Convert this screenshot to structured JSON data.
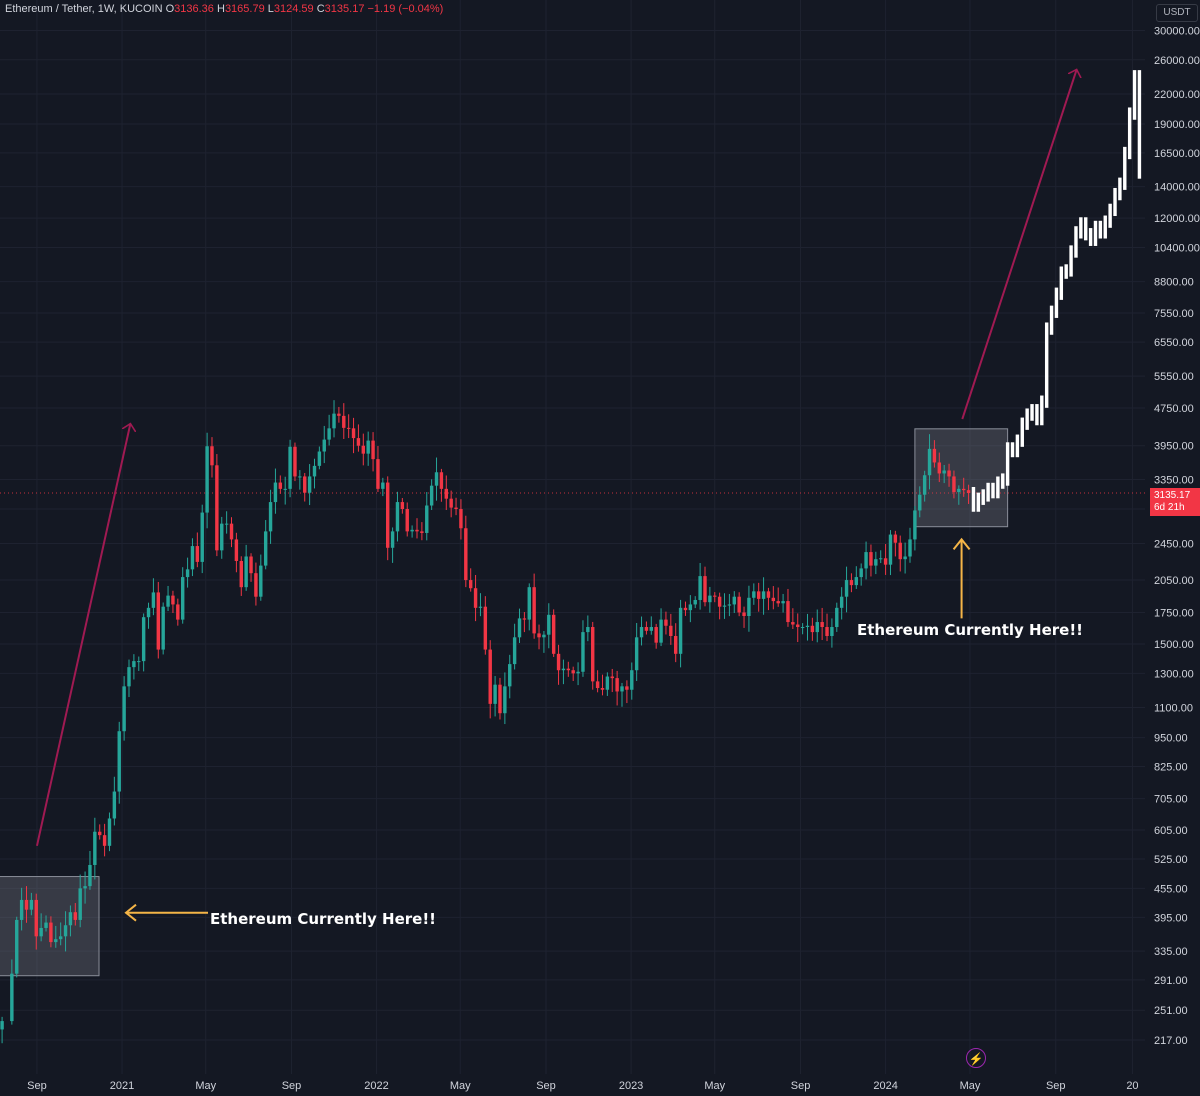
{
  "header": {
    "symbol": "Ethereum / Tether, 1W, KUCOIN",
    "o_label": "O",
    "o_value": "3136.36",
    "h_label": "H",
    "h_value": "3165.79",
    "l_label": "L",
    "l_value": "3124.59",
    "c_label": "C",
    "c_value": "3135.17",
    "change": "−1.19 (−0.04%)"
  },
  "currency_badge": "USDT",
  "last_price": {
    "value": "3135.17",
    "countdown": "6d 21h"
  },
  "annotations": {
    "left_label": "Ethereum Currently Here!!",
    "right_label": "Ethereum Currently Here!!"
  },
  "colors": {
    "background": "#141823",
    "up": "#26a69a",
    "down": "#f23645",
    "projection": "#ffffff",
    "trend_arrow": "#a01a52",
    "pointer_arrow": "#f5b547",
    "highlight_box": "#545866"
  },
  "icons": {
    "replay": "lightning-icon"
  },
  "chart_data": {
    "type": "candlestick",
    "symbol": "Ethereum / Tether",
    "timeframe": "1W",
    "exchange": "KUCOIN",
    "y_scale": "log",
    "ylim": [
      190,
      31000
    ],
    "y_ticks": [
      30000,
      26000,
      22000,
      19000,
      16500,
      14000,
      12000,
      10400,
      8800,
      7550,
      6550,
      5550,
      4750,
      3950,
      3350,
      2900,
      2450,
      2050,
      1750,
      1500,
      1300,
      1100,
      950,
      825,
      705,
      605,
      525,
      455,
      395,
      335,
      291,
      251,
      217
    ],
    "y_tick_labels": [
      "30000.00",
      "26000.00",
      "22000.00",
      "19000.00",
      "16500.00",
      "14000.00",
      "12000.00",
      "10400.00",
      "8800.00",
      "7550.00",
      "6550.00",
      "5550.00",
      "4750.00",
      "3950.00",
      "3350.00",
      "2900.00",
      "2450.00",
      "2050.00",
      "1750.00",
      "1500.00",
      "1300.00",
      "1100.00",
      "950.00",
      "825.00",
      "705.00",
      "605.00",
      "525.00",
      "455.00",
      "395.00",
      "335.00",
      "291.00",
      "251.00",
      "217.00"
    ],
    "x_ticks": [
      {
        "label": "Sep",
        "date": "2020-09-01"
      },
      {
        "label": "2021",
        "date": "2021-01-01"
      },
      {
        "label": "May",
        "date": "2021-05-01"
      },
      {
        "label": "Sep",
        "date": "2021-09-01"
      },
      {
        "label": "2022",
        "date": "2022-01-01"
      },
      {
        "label": "May",
        "date": "2022-05-01"
      },
      {
        "label": "Sep",
        "date": "2022-09-01"
      },
      {
        "label": "2023",
        "date": "2023-01-01"
      },
      {
        "label": "May",
        "date": "2023-05-01"
      },
      {
        "label": "Sep",
        "date": "2023-09-01"
      },
      {
        "label": "2024",
        "date": "2024-01-01"
      },
      {
        "label": "May",
        "date": "2024-05-01"
      },
      {
        "label": "Sep",
        "date": "2024-09-01"
      },
      {
        "label": "20",
        "date": "2024-12-20"
      }
    ],
    "x_range": [
      "2020-07-10",
      "2025-01-07"
    ],
    "last_price": 3135.17,
    "weekly_path": [
      [
        "2020-07-13",
        238
      ],
      [
        "2020-07-27",
        300
      ],
      [
        "2020-08-03",
        390
      ],
      [
        "2020-08-10",
        430
      ],
      [
        "2020-08-17",
        410
      ],
      [
        "2020-08-24",
        430
      ],
      [
        "2020-08-31",
        360
      ],
      [
        "2020-09-07",
        375
      ],
      [
        "2020-09-14",
        385
      ],
      [
        "2020-09-21",
        350
      ],
      [
        "2020-09-28",
        355
      ],
      [
        "2020-10-05",
        360
      ],
      [
        "2020-10-12",
        380
      ],
      [
        "2020-10-19",
        405
      ],
      [
        "2020-10-26",
        390
      ],
      [
        "2020-11-02",
        455
      ],
      [
        "2020-11-09",
        460
      ],
      [
        "2020-11-16",
        510
      ],
      [
        "2020-11-23",
        600
      ],
      [
        "2020-11-30",
        590
      ],
      [
        "2020-12-07",
        560
      ],
      [
        "2020-12-14",
        640
      ],
      [
        "2020-12-21",
        730
      ],
      [
        "2020-12-28",
        980
      ],
      [
        "2021-01-04",
        1220
      ],
      [
        "2021-01-11",
        1340
      ],
      [
        "2021-01-18",
        1380
      ],
      [
        "2021-01-25",
        1380
      ],
      [
        "2021-02-01",
        1710
      ],
      [
        "2021-02-08",
        1790
      ],
      [
        "2021-02-15",
        1930
      ],
      [
        "2021-02-22",
        1460
      ],
      [
        "2021-03-01",
        1800
      ],
      [
        "2021-03-08",
        1900
      ],
      [
        "2021-03-15",
        1820
      ],
      [
        "2021-03-22",
        1690
      ],
      [
        "2021-03-29",
        2080
      ],
      [
        "2021-04-05",
        2160
      ],
      [
        "2021-04-12",
        2420
      ],
      [
        "2021-04-19",
        2240
      ],
      [
        "2021-04-26",
        2850
      ],
      [
        "2021-05-03",
        3940
      ],
      [
        "2021-05-10",
        3590
      ],
      [
        "2021-05-17",
        2370
      ],
      [
        "2021-05-24",
        2700
      ],
      [
        "2021-05-31",
        2700
      ],
      [
        "2021-06-07",
        2500
      ],
      [
        "2021-06-14",
        2250
      ],
      [
        "2021-06-21",
        1980
      ],
      [
        "2021-06-28",
        2300
      ],
      [
        "2021-07-05",
        2120
      ],
      [
        "2021-07-12",
        1890
      ],
      [
        "2021-07-19",
        2200
      ],
      [
        "2021-07-26",
        2600
      ],
      [
        "2021-08-02",
        3000
      ],
      [
        "2021-08-09",
        3300
      ],
      [
        "2021-08-16",
        3200
      ],
      [
        "2021-08-23",
        3200
      ],
      [
        "2021-08-30",
        3930
      ],
      [
        "2021-09-06",
        3400
      ],
      [
        "2021-09-13",
        3400
      ],
      [
        "2021-09-20",
        3140
      ],
      [
        "2021-09-27",
        3400
      ],
      [
        "2021-10-04",
        3580
      ],
      [
        "2021-10-11",
        3840
      ],
      [
        "2021-10-18",
        4070
      ],
      [
        "2021-10-25",
        4300
      ],
      [
        "2021-11-01",
        4620
      ],
      [
        "2021-11-08",
        4570
      ],
      [
        "2021-11-15",
        4310
      ],
      [
        "2021-11-22",
        4300
      ],
      [
        "2021-11-29",
        4100
      ],
      [
        "2021-12-06",
        3950
      ],
      [
        "2021-12-13",
        3800
      ],
      [
        "2021-12-20",
        4050
      ],
      [
        "2021-12-27",
        3700
      ],
      [
        "2022-01-03",
        3200
      ],
      [
        "2022-01-10",
        3300
      ],
      [
        "2022-01-17",
        2400
      ],
      [
        "2022-01-24",
        2600
      ],
      [
        "2022-01-31",
        3000
      ],
      [
        "2022-02-07",
        2900
      ],
      [
        "2022-02-14",
        2600
      ],
      [
        "2022-02-21",
        2620
      ],
      [
        "2022-02-28",
        2600
      ],
      [
        "2022-03-07",
        2580
      ],
      [
        "2022-03-14",
        2950
      ],
      [
        "2022-03-21",
        3250
      ],
      [
        "2022-03-28",
        3470
      ],
      [
        "2022-04-04",
        3200
      ],
      [
        "2022-04-11",
        3050
      ],
      [
        "2022-04-18",
        2920
      ],
      [
        "2022-04-25",
        2900
      ],
      [
        "2022-05-02",
        2640
      ],
      [
        "2022-05-09",
        2050
      ],
      [
        "2022-05-16",
        1970
      ],
      [
        "2022-05-23",
        1790
      ],
      [
        "2022-05-30",
        1800
      ],
      [
        "2022-06-06",
        1460
      ],
      [
        "2022-06-13",
        1120
      ],
      [
        "2022-06-20",
        1230
      ],
      [
        "2022-06-27",
        1070
      ],
      [
        "2022-07-04",
        1220
      ],
      [
        "2022-07-11",
        1360
      ],
      [
        "2022-07-18",
        1550
      ],
      [
        "2022-07-25",
        1700
      ],
      [
        "2022-08-01",
        1690
      ],
      [
        "2022-08-08",
        1980
      ],
      [
        "2022-08-15",
        1580
      ],
      [
        "2022-08-22",
        1550
      ],
      [
        "2022-08-29",
        1570
      ],
      [
        "2022-09-05",
        1730
      ],
      [
        "2022-09-12",
        1430
      ],
      [
        "2022-09-19",
        1320
      ],
      [
        "2022-09-26",
        1330
      ],
      [
        "2022-10-03",
        1320
      ],
      [
        "2022-10-10",
        1300
      ],
      [
        "2022-10-17",
        1310
      ],
      [
        "2022-10-24",
        1590
      ],
      [
        "2022-10-31",
        1630
      ],
      [
        "2022-11-07",
        1250
      ],
      [
        "2022-11-14",
        1210
      ],
      [
        "2022-11-21",
        1200
      ],
      [
        "2022-11-28",
        1280
      ],
      [
        "2022-12-05",
        1270
      ],
      [
        "2022-12-12",
        1190
      ],
      [
        "2022-12-19",
        1220
      ],
      [
        "2022-12-26",
        1200
      ],
      [
        "2023-01-02",
        1320
      ],
      [
        "2023-01-09",
        1550
      ],
      [
        "2023-01-16",
        1630
      ],
      [
        "2023-01-23",
        1600
      ],
      [
        "2023-01-30",
        1630
      ],
      [
        "2023-02-06",
        1510
      ],
      [
        "2023-02-13",
        1690
      ],
      [
        "2023-02-20",
        1640
      ],
      [
        "2023-02-27",
        1560
      ],
      [
        "2023-03-06",
        1430
      ],
      [
        "2023-03-13",
        1790
      ],
      [
        "2023-03-20",
        1770
      ],
      [
        "2023-03-27",
        1820
      ],
      [
        "2023-04-03",
        1860
      ],
      [
        "2023-04-10",
        2090
      ],
      [
        "2023-04-17",
        1840
      ],
      [
        "2023-04-24",
        1900
      ],
      [
        "2023-05-01",
        1890
      ],
      [
        "2023-05-08",
        1800
      ],
      [
        "2023-05-15",
        1810
      ],
      [
        "2023-05-22",
        1820
      ],
      [
        "2023-05-29",
        1890
      ],
      [
        "2023-06-05",
        1750
      ],
      [
        "2023-06-12",
        1720
      ],
      [
        "2023-06-19",
        1880
      ],
      [
        "2023-06-26",
        1940
      ],
      [
        "2023-07-03",
        1870
      ],
      [
        "2023-07-10",
        1940
      ],
      [
        "2023-07-17",
        1880
      ],
      [
        "2023-07-24",
        1850
      ],
      [
        "2023-07-31",
        1830
      ],
      [
        "2023-08-07",
        1850
      ],
      [
        "2023-08-14",
        1670
      ],
      [
        "2023-08-21",
        1650
      ],
      [
        "2023-08-28",
        1630
      ],
      [
        "2023-09-04",
        1630
      ],
      [
        "2023-09-11",
        1640
      ],
      [
        "2023-09-18",
        1590
      ],
      [
        "2023-09-25",
        1670
      ],
      [
        "2023-10-02",
        1630
      ],
      [
        "2023-10-09",
        1560
      ],
      [
        "2023-10-16",
        1630
      ],
      [
        "2023-10-23",
        1790
      ],
      [
        "2023-10-30",
        1890
      ],
      [
        "2023-11-06",
        2050
      ],
      [
        "2023-11-13",
        2000
      ],
      [
        "2023-11-20",
        2080
      ],
      [
        "2023-11-27",
        2170
      ],
      [
        "2023-12-04",
        2350
      ],
      [
        "2023-12-11",
        2200
      ],
      [
        "2023-12-18",
        2270
      ],
      [
        "2023-12-25",
        2280
      ],
      [
        "2024-01-01",
        2210
      ],
      [
        "2024-01-08",
        2560
      ],
      [
        "2024-01-15",
        2460
      ],
      [
        "2024-01-22",
        2270
      ],
      [
        "2024-01-29",
        2300
      ],
      [
        "2024-02-05",
        2500
      ],
      [
        "2024-02-12",
        2880
      ],
      [
        "2024-02-19",
        3110
      ],
      [
        "2024-02-26",
        3420
      ],
      [
        "2024-03-04",
        3890
      ],
      [
        "2024-03-11",
        3640
      ],
      [
        "2024-03-18",
        3450
      ],
      [
        "2024-03-25",
        3500
      ],
      [
        "2024-04-01",
        3400
      ],
      [
        "2024-04-08",
        3150
      ],
      [
        "2024-04-15",
        3200
      ],
      [
        "2024-04-22",
        3180
      ],
      [
        "2024-04-29",
        3135.17
      ]
    ],
    "projection_path": [
      [
        "2024-05-06",
        2950
      ],
      [
        "2024-05-13",
        3050
      ],
      [
        "2024-05-20",
        3100
      ],
      [
        "2024-05-27",
        3200
      ],
      [
        "2024-06-03",
        3150
      ],
      [
        "2024-06-10",
        3300
      ],
      [
        "2024-06-17",
        3350
      ],
      [
        "2024-06-24",
        3900
      ],
      [
        "2024-07-01",
        3850
      ],
      [
        "2024-07-08",
        4050
      ],
      [
        "2024-07-15",
        4400
      ],
      [
        "2024-07-22",
        4600
      ],
      [
        "2024-07-29",
        4700
      ],
      [
        "2024-08-05",
        4500
      ],
      [
        "2024-08-12",
        4900
      ],
      [
        "2024-08-19",
        7000
      ],
      [
        "2024-08-26",
        7600
      ],
      [
        "2024-09-02",
        8300
      ],
      [
        "2024-09-09",
        9200
      ],
      [
        "2024-09-16",
        9300
      ],
      [
        "2024-09-23",
        10200
      ],
      [
        "2024-09-30",
        11200
      ],
      [
        "2024-10-07",
        11700
      ],
      [
        "2024-10-14",
        11100
      ],
      [
        "2024-10-21",
        10800
      ],
      [
        "2024-10-28",
        11500
      ],
      [
        "2024-11-04",
        11200
      ],
      [
        "2024-11-11",
        11800
      ],
      [
        "2024-11-18",
        12500
      ],
      [
        "2024-11-25",
        13500
      ],
      [
        "2024-12-02",
        14200
      ],
      [
        "2024-12-09",
        16500
      ],
      [
        "2024-12-16",
        20000
      ],
      [
        "2024-12-23",
        24000
      ],
      [
        "2024-12-30",
        15000
      ]
    ]
  }
}
